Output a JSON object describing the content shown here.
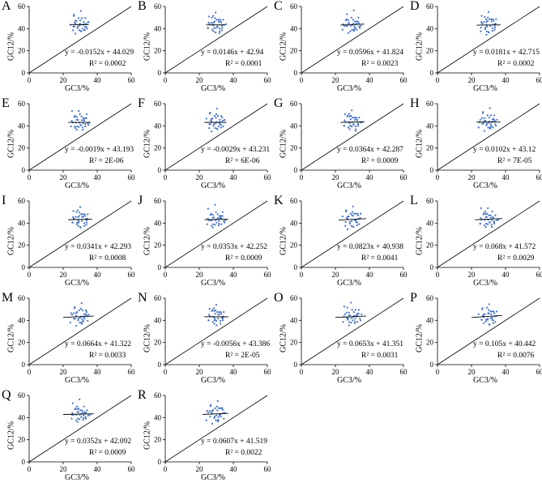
{
  "figure": {
    "title": "",
    "axis_x_label": "GC3/%",
    "axis_y_label": "GC12/%",
    "r2_prefix": "R² = ",
    "colors": {
      "points": "#4472c4",
      "axes": "#000000",
      "fit": "#000000",
      "neutrality": "#000000"
    }
  },
  "chart_data": [
    {
      "label": "A",
      "type": "scatter",
      "title": "",
      "xlabel": "GC3/%",
      "ylabel": "GC12/%",
      "xlim": [
        0,
        60
      ],
      "ylim": [
        0,
        60
      ],
      "xticks": [
        0,
        20,
        40,
        60
      ],
      "yticks": [
        0,
        20,
        40,
        60
      ],
      "equation": "y = -0.0152x + 44.029",
      "r2": "0.0002",
      "slope": -0.0152,
      "intercept": 44.029,
      "x_range": [
        24,
        35
      ]
    },
    {
      "label": "B",
      "type": "scatter",
      "title": "",
      "xlabel": "GC3/%",
      "ylabel": "GC12/%",
      "xlim": [
        0,
        60
      ],
      "ylim": [
        0,
        60
      ],
      "xticks": [
        0,
        20,
        40,
        60
      ],
      "yticks": [
        0,
        20,
        40,
        60
      ],
      "equation": "y = 0.0146x + 42.94",
      "r2": "0.0001",
      "slope": 0.0146,
      "intercept": 42.94,
      "x_range": [
        24,
        35
      ]
    },
    {
      "label": "C",
      "type": "scatter",
      "title": "",
      "xlabel": "GC3/%",
      "ylabel": "GC12/%",
      "xlim": [
        0,
        60
      ],
      "ylim": [
        0,
        60
      ],
      "xticks": [
        0,
        20,
        40,
        60
      ],
      "yticks": [
        0,
        20,
        40,
        60
      ],
      "equation": "y = 0.0596x + 41.824",
      "r2": "0.0023",
      "slope": 0.0596,
      "intercept": 41.824,
      "x_range": [
        23,
        37
      ]
    },
    {
      "label": "D",
      "type": "scatter",
      "title": "",
      "xlabel": "GC3/%",
      "ylabel": "GC12/%",
      "xlim": [
        0,
        60
      ],
      "ylim": [
        0,
        60
      ],
      "xticks": [
        0,
        20,
        40,
        60
      ],
      "yticks": [
        0,
        20,
        40,
        60
      ],
      "equation": "y = 0.0181x + 42.715",
      "r2": "0.0002",
      "slope": 0.0181,
      "intercept": 42.715,
      "x_range": [
        23,
        37
      ]
    },
    {
      "label": "E",
      "type": "scatter",
      "title": "",
      "xlabel": "GC3/%",
      "ylabel": "GC12/%",
      "xlim": [
        0,
        60
      ],
      "ylim": [
        0,
        60
      ],
      "xticks": [
        0,
        20,
        40,
        60
      ],
      "yticks": [
        0,
        20,
        40,
        60
      ],
      "equation": "y = -0.0019x + 43.193",
      "r2": "2E-06",
      "slope": -0.0019,
      "intercept": 43.193,
      "x_range": [
        23,
        36
      ]
    },
    {
      "label": "F",
      "type": "scatter",
      "title": "",
      "xlabel": "GC3/%",
      "ylabel": "GC12/%",
      "xlim": [
        0,
        60
      ],
      "ylim": [
        0,
        60
      ],
      "xticks": [
        0,
        20,
        40,
        60
      ],
      "yticks": [
        0,
        20,
        40,
        60
      ],
      "equation": "y = -0.0029x + 43.231",
      "r2": "6E-06",
      "slope": -0.0029,
      "intercept": 43.231,
      "x_range": [
        23,
        36
      ]
    },
    {
      "label": "G",
      "type": "scatter",
      "title": "",
      "xlabel": "GC3/%",
      "ylabel": "GC12/%",
      "xlim": [
        0,
        60
      ],
      "ylim": [
        0,
        60
      ],
      "xticks": [
        0,
        20,
        40,
        60
      ],
      "yticks": [
        0,
        20,
        40,
        60
      ],
      "equation": "y = 0.0364x + 42.287",
      "r2": "0.0009",
      "slope": 0.0364,
      "intercept": 42.287,
      "x_range": [
        23,
        37
      ]
    },
    {
      "label": "H",
      "type": "scatter",
      "title": "",
      "xlabel": "GC3/%",
      "ylabel": "GC12/%",
      "xlim": [
        0,
        60
      ],
      "ylim": [
        0,
        60
      ],
      "xticks": [
        0,
        20,
        40,
        60
      ],
      "yticks": [
        0,
        20,
        40,
        60
      ],
      "equation": "y = 0.0102x + 43.12",
      "r2": "7E-05",
      "slope": 0.0102,
      "intercept": 43.12,
      "x_range": [
        23,
        37
      ]
    },
    {
      "label": "I",
      "type": "scatter",
      "title": "",
      "xlabel": "GC3/%",
      "ylabel": "GC12/%",
      "xlim": [
        0,
        60
      ],
      "ylim": [
        0,
        60
      ],
      "xticks": [
        0,
        20,
        40,
        60
      ],
      "yticks": [
        0,
        20,
        40,
        60
      ],
      "equation": "y = 0.0341x + 42.293",
      "r2": "0.0008",
      "slope": 0.0341,
      "intercept": 42.293,
      "x_range": [
        23,
        37
      ]
    },
    {
      "label": "J",
      "type": "scatter",
      "title": "",
      "xlabel": "GC3/%",
      "ylabel": "GC12/%",
      "xlim": [
        0,
        60
      ],
      "ylim": [
        0,
        60
      ],
      "xticks": [
        0,
        20,
        40,
        60
      ],
      "yticks": [
        0,
        20,
        40,
        60
      ],
      "equation": "y = 0.0353x + 42.252",
      "r2": "0.0009",
      "slope": 0.0353,
      "intercept": 42.252,
      "x_range": [
        23,
        37
      ]
    },
    {
      "label": "K",
      "type": "scatter",
      "title": "",
      "xlabel": "GC3/%",
      "ylabel": "GC12/%",
      "xlim": [
        0,
        60
      ],
      "ylim": [
        0,
        60
      ],
      "xticks": [
        0,
        20,
        40,
        60
      ],
      "yticks": [
        0,
        20,
        40,
        60
      ],
      "equation": "y = 0.0823x + 40.938",
      "r2": "0.0041",
      "slope": 0.0823,
      "intercept": 40.938,
      "x_range": [
        22,
        38
      ]
    },
    {
      "label": "L",
      "type": "scatter",
      "title": "",
      "xlabel": "GC3/%",
      "ylabel": "GC12/%",
      "xlim": [
        0,
        60
      ],
      "ylim": [
        0,
        60
      ],
      "xticks": [
        0,
        20,
        40,
        60
      ],
      "yticks": [
        0,
        20,
        40,
        60
      ],
      "equation": "y = 0.068x + 41.572",
      "r2": "0.0029",
      "slope": 0.068,
      "intercept": 41.572,
      "x_range": [
        22,
        38
      ]
    },
    {
      "label": "M",
      "type": "scatter",
      "title": "",
      "xlabel": "GC3/%",
      "ylabel": "GC12/%",
      "xlim": [
        0,
        60
      ],
      "ylim": [
        0,
        60
      ],
      "xticks": [
        0,
        20,
        40,
        60
      ],
      "yticks": [
        0,
        20,
        40,
        60
      ],
      "equation": "y = 0.0664x + 41.322",
      "r2": "0.0033",
      "slope": 0.0664,
      "intercept": 41.322,
      "x_range": [
        20,
        38
      ]
    },
    {
      "label": "N",
      "type": "scatter",
      "title": "",
      "xlabel": "GC3/%",
      "ylabel": "GC12/%",
      "xlim": [
        0,
        60
      ],
      "ylim": [
        0,
        60
      ],
      "xticks": [
        0,
        20,
        40,
        60
      ],
      "yticks": [
        0,
        20,
        40,
        60
      ],
      "equation": "y = -0.0056x + 43.386",
      "r2": "2E-05",
      "slope": -0.0056,
      "intercept": 43.386,
      "x_range": [
        23,
        37
      ]
    },
    {
      "label": "O",
      "type": "scatter",
      "title": "",
      "xlabel": "GC3/%",
      "ylabel": "GC12/%",
      "xlim": [
        0,
        60
      ],
      "ylim": [
        0,
        60
      ],
      "xticks": [
        0,
        20,
        40,
        60
      ],
      "yticks": [
        0,
        20,
        40,
        60
      ],
      "equation": "y = 0.0653x + 41.351",
      "r2": "0.0031",
      "slope": 0.0653,
      "intercept": 41.351,
      "x_range": [
        20,
        38
      ]
    },
    {
      "label": "P",
      "type": "scatter",
      "title": "",
      "xlabel": "GC3/%",
      "ylabel": "GC12/%",
      "xlim": [
        0,
        60
      ],
      "ylim": [
        0,
        60
      ],
      "xticks": [
        0,
        20,
        40,
        60
      ],
      "yticks": [
        0,
        20,
        40,
        60
      ],
      "equation": "y = 0.105x + 40.442",
      "r2": "0.0076",
      "slope": 0.105,
      "intercept": 40.442,
      "x_range": [
        20,
        38
      ]
    },
    {
      "label": "Q",
      "type": "scatter",
      "title": "",
      "xlabel": "GC3/%",
      "ylabel": "GC12/%",
      "xlim": [
        0,
        60
      ],
      "ylim": [
        0,
        60
      ],
      "xticks": [
        0,
        20,
        40,
        60
      ],
      "yticks": [
        0,
        20,
        40,
        60
      ],
      "equation": "y = 0.0352x + 42.092",
      "r2": "0.0009",
      "slope": 0.0352,
      "intercept": 42.092,
      "x_range": [
        20,
        38
      ]
    },
    {
      "label": "R",
      "type": "scatter",
      "title": "",
      "xlabel": "GC3/%",
      "ylabel": "GC12/%",
      "xlim": [
        0,
        60
      ],
      "ylim": [
        0,
        60
      ],
      "xticks": [
        0,
        20,
        40,
        60
      ],
      "yticks": [
        0,
        20,
        40,
        60
      ],
      "equation": "y = 0.0607x + 41.519",
      "r2": "0.0022",
      "slope": 0.0607,
      "intercept": 41.519,
      "x_range": [
        22,
        37
      ]
    }
  ],
  "scatter_points": [
    [
      25,
      45
    ],
    [
      26,
      41
    ],
    [
      27,
      47
    ],
    [
      27,
      43
    ],
    [
      28,
      39
    ],
    [
      28,
      44
    ],
    [
      29,
      50
    ],
    [
      29,
      46
    ],
    [
      30,
      42
    ],
    [
      30,
      38
    ],
    [
      31,
      45
    ],
    [
      31,
      48
    ],
    [
      32,
      41
    ],
    [
      32,
      44
    ],
    [
      33,
      46
    ],
    [
      33,
      43
    ],
    [
      34,
      40
    ],
    [
      34,
      47
    ],
    [
      35,
      44
    ],
    [
      26,
      52
    ],
    [
      28,
      36
    ],
    [
      30,
      49
    ],
    [
      32,
      38
    ],
    [
      29,
      42
    ],
    [
      31,
      41
    ],
    [
      27,
      50
    ],
    [
      33,
      49
    ],
    [
      25,
      39
    ],
    [
      34,
      43
    ],
    [
      30,
      55
    ],
    [
      28,
      47
    ],
    [
      32,
      47
    ],
    [
      26,
      44
    ],
    [
      31,
      37
    ],
    [
      29,
      39
    ],
    [
      33,
      40
    ]
  ]
}
